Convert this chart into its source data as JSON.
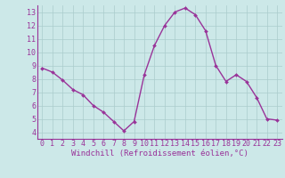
{
  "x": [
    0,
    1,
    2,
    3,
    4,
    5,
    6,
    7,
    8,
    9,
    10,
    11,
    12,
    13,
    14,
    15,
    16,
    17,
    18,
    19,
    20,
    21,
    22,
    23
  ],
  "y": [
    8.8,
    8.5,
    7.9,
    7.2,
    6.8,
    6.0,
    5.5,
    4.8,
    4.1,
    4.8,
    8.3,
    10.5,
    12.0,
    13.0,
    13.3,
    12.8,
    11.6,
    9.0,
    7.8,
    8.3,
    7.8,
    6.6,
    5.0,
    4.9
  ],
  "line_color": "#993399",
  "marker_color": "#993399",
  "bg_color": "#cce8e8",
  "grid_color": "#aacccc",
  "xlabel": "Windchill (Refroidissement éolien,°C)",
  "xlim": [
    -0.5,
    23.5
  ],
  "ylim": [
    3.5,
    13.5
  ],
  "xticks": [
    0,
    1,
    2,
    3,
    4,
    5,
    6,
    7,
    8,
    9,
    10,
    11,
    12,
    13,
    14,
    15,
    16,
    17,
    18,
    19,
    20,
    21,
    22,
    23
  ],
  "yticks": [
    4,
    5,
    6,
    7,
    8,
    9,
    10,
    11,
    12,
    13
  ],
  "xlabel_fontsize": 6.5,
  "tick_fontsize": 6.0,
  "line_width": 1.0,
  "marker_size": 2.0
}
